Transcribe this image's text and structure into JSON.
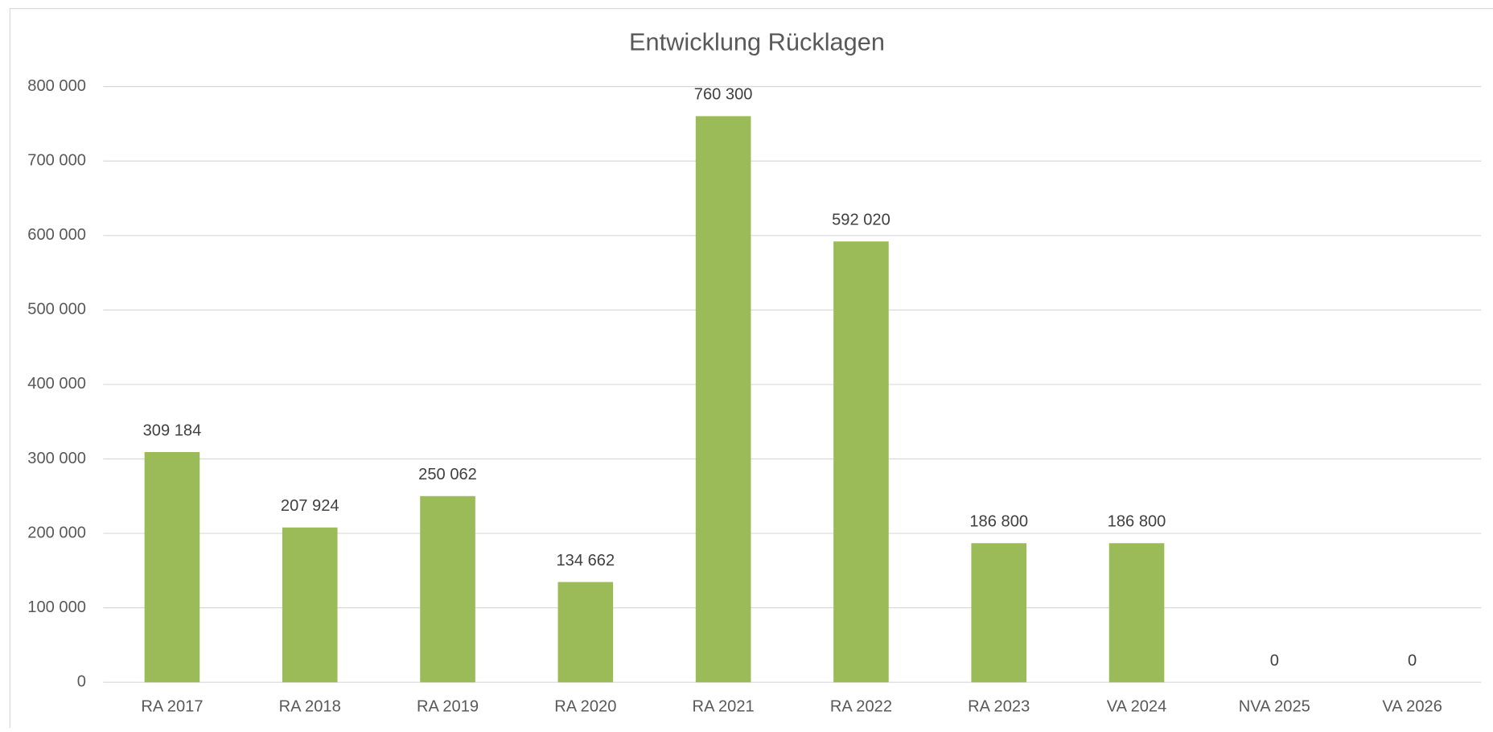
{
  "chart_data": {
    "type": "bar",
    "title": "Entwicklung Rücklagen",
    "categories": [
      "RA 2017",
      "RA 2018",
      "RA 2019",
      "RA 2020",
      "RA 2021",
      "RA 2022",
      "RA 2023",
      "VA 2024",
      "NVA 2025",
      "VA 2026"
    ],
    "values": [
      309184,
      207924,
      250062,
      134662,
      760300,
      592020,
      186800,
      186800,
      0,
      0
    ],
    "value_labels": [
      "309 184",
      "207 924",
      "250 062",
      "134 662",
      "760 300",
      "592 020",
      "186 800",
      "186 800",
      "0",
      "0"
    ],
    "color": "#9bbb59",
    "ylim": [
      0,
      800000
    ],
    "yticks": [
      0,
      {
        "value": 100000,
        "label": "100 000"
      },
      {
        "value": 200000,
        "label": "200 000"
      },
      {
        "value": 300000,
        "label": "300 000"
      },
      {
        "value": 400000,
        "label": "400 000"
      },
      {
        "value": 500000,
        "label": "500 000"
      },
      {
        "value": 600000,
        "label": "600 000"
      },
      {
        "value": 700000,
        "label": "700 000"
      },
      {
        "value": 800000,
        "label": "800 000"
      }
    ],
    "grid": true
  }
}
